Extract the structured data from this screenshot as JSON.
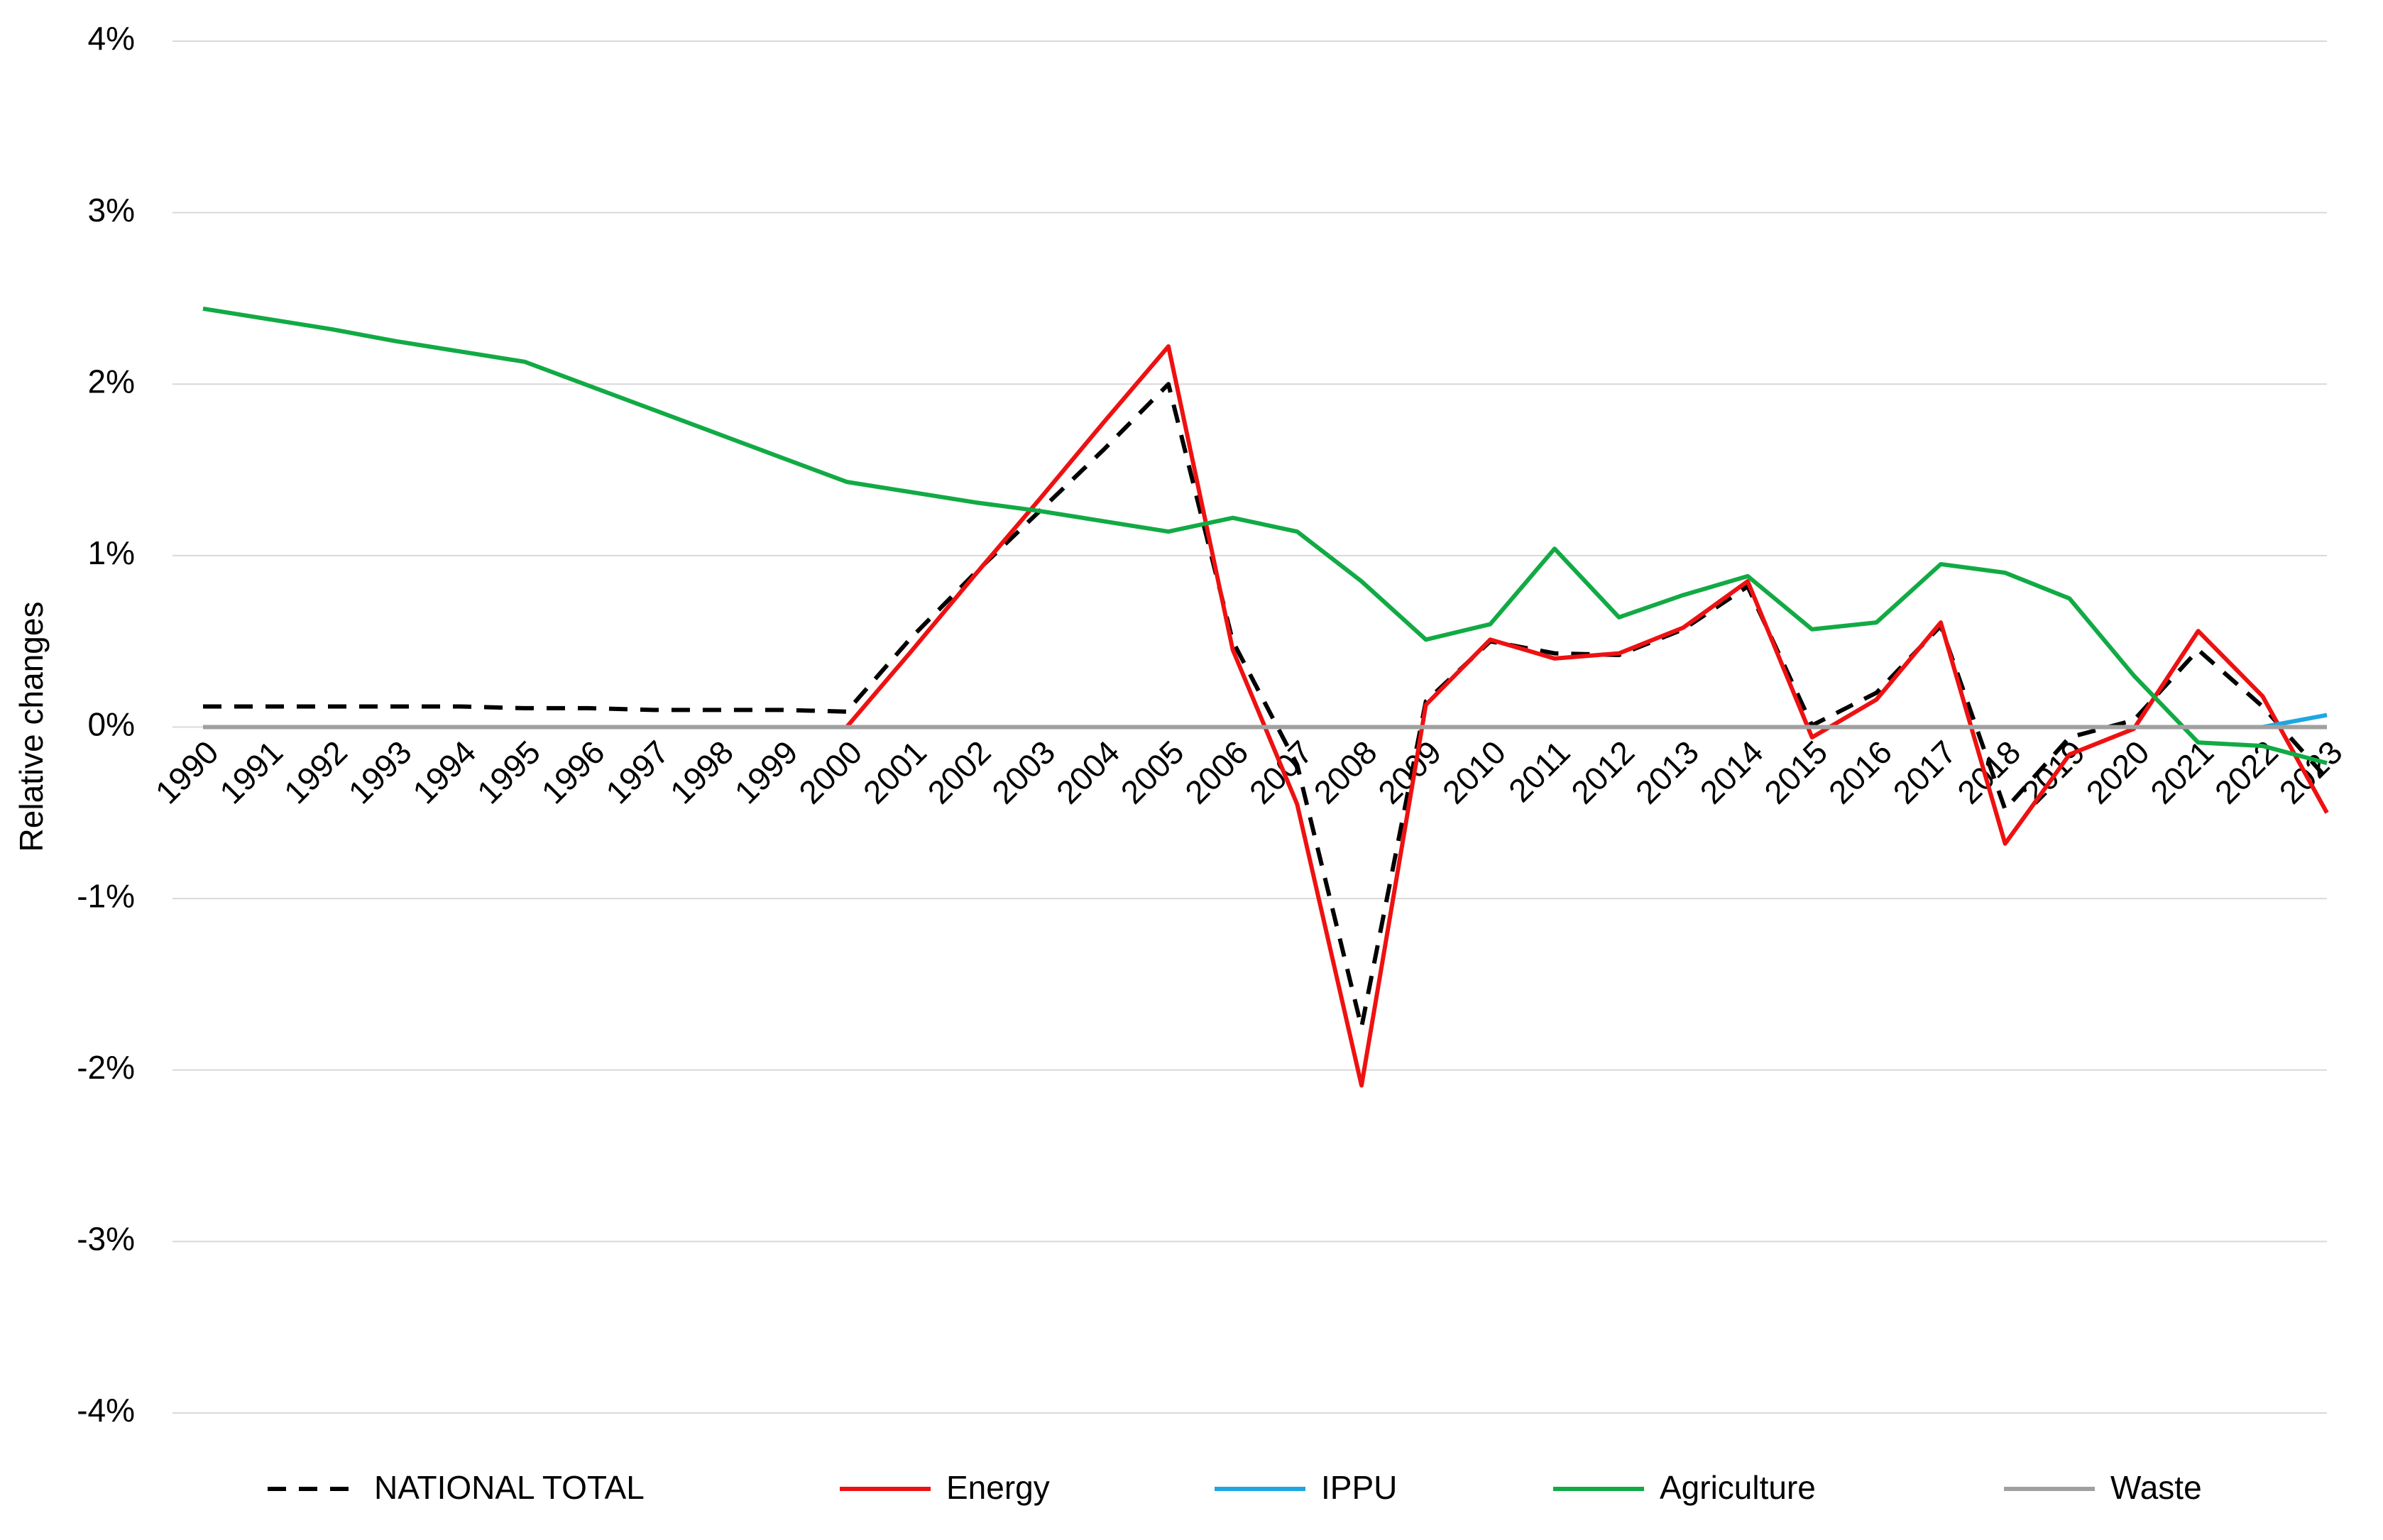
{
  "chart_data": {
    "type": "line",
    "y_label": "Relative changes",
    "categories": [
      "1990",
      "1991",
      "1992",
      "1993",
      "1994",
      "1995",
      "1996",
      "1997",
      "1998",
      "1999",
      "2000",
      "2001",
      "2002",
      "2003",
      "2004",
      "2005",
      "2006",
      "2007",
      "2008",
      "2009",
      "2010",
      "2011",
      "2012",
      "2013",
      "2014",
      "2015",
      "2016",
      "2017",
      "2018",
      "2019",
      "2020",
      "2021",
      "2022",
      "2023"
    ],
    "series": [
      {
        "name": "NATIONAL TOTAL",
        "color": "#000000",
        "dashed": true,
        "values": [
          0.12,
          0.12,
          0.12,
          0.12,
          0.12,
          0.11,
          0.11,
          0.1,
          0.1,
          0.1,
          0.09,
          0.52,
          0.9,
          1.26,
          1.62,
          2.0,
          0.5,
          -0.22,
          -1.75,
          0.15,
          0.5,
          0.43,
          0.42,
          0.57,
          0.82,
          0.01,
          0.2,
          0.59,
          -0.48,
          -0.06,
          0.04,
          0.45,
          0.12,
          -0.3
        ]
      },
      {
        "name": "Energy",
        "color": "#ee1111",
        "values": [
          0,
          0,
          0,
          0,
          0,
          0,
          0,
          0,
          0,
          0,
          0,
          0.44,
          0.89,
          1.33,
          1.78,
          2.22,
          0.45,
          -0.45,
          -2.09,
          0.13,
          0.51,
          0.4,
          0.43,
          0.58,
          0.85,
          -0.06,
          0.16,
          0.61,
          -0.68,
          -0.16,
          -0.01,
          0.56,
          0.18,
          -0.5
        ]
      },
      {
        "name": "IPPU",
        "color": "#1ea7e1",
        "values": [
          0,
          0,
          0,
          0,
          0,
          0,
          0,
          0,
          0,
          0,
          0,
          0,
          0,
          0,
          0,
          0,
          0,
          0,
          0,
          0,
          0,
          0,
          0,
          0,
          0,
          0,
          0,
          0,
          0,
          0,
          0,
          0,
          0,
          0.07
        ]
      },
      {
        "name": "Agriculture",
        "color": "#11aa44",
        "values": [
          2.44,
          2.38,
          2.32,
          2.25,
          2.19,
          2.13,
          1.99,
          1.85,
          1.71,
          1.57,
          1.43,
          1.37,
          1.31,
          1.26,
          1.2,
          1.14,
          1.22,
          1.14,
          0.85,
          0.51,
          0.6,
          1.04,
          0.64,
          0.77,
          0.88,
          0.57,
          0.61,
          0.95,
          0.9,
          0.75,
          0.3,
          -0.09,
          -0.11,
          -0.21
        ]
      },
      {
        "name": "Waste",
        "color": "#a0a0a0",
        "values": [
          0,
          0,
          0,
          0,
          0,
          0,
          0,
          0,
          0,
          0,
          0,
          0,
          0,
          0,
          0,
          0,
          0,
          0,
          0,
          0,
          0,
          0,
          0,
          0,
          0,
          0,
          0,
          0,
          0,
          0,
          0,
          0,
          0,
          0
        ]
      }
    ],
    "ylim": [
      -4,
      4
    ],
    "yticks": [
      {
        "value": -4,
        "label": "-4%"
      },
      {
        "value": -3,
        "label": "-3%"
      },
      {
        "value": -2,
        "label": "-2%"
      },
      {
        "value": -1,
        "label": "-1%"
      },
      {
        "value": 0,
        "label": "0%"
      },
      {
        "value": 1,
        "label": "1%"
      },
      {
        "value": 2,
        "label": "2%"
      },
      {
        "value": 3,
        "label": "3%"
      },
      {
        "value": 4,
        "label": "4%"
      }
    ],
    "grid": true,
    "legend": "bottom"
  }
}
